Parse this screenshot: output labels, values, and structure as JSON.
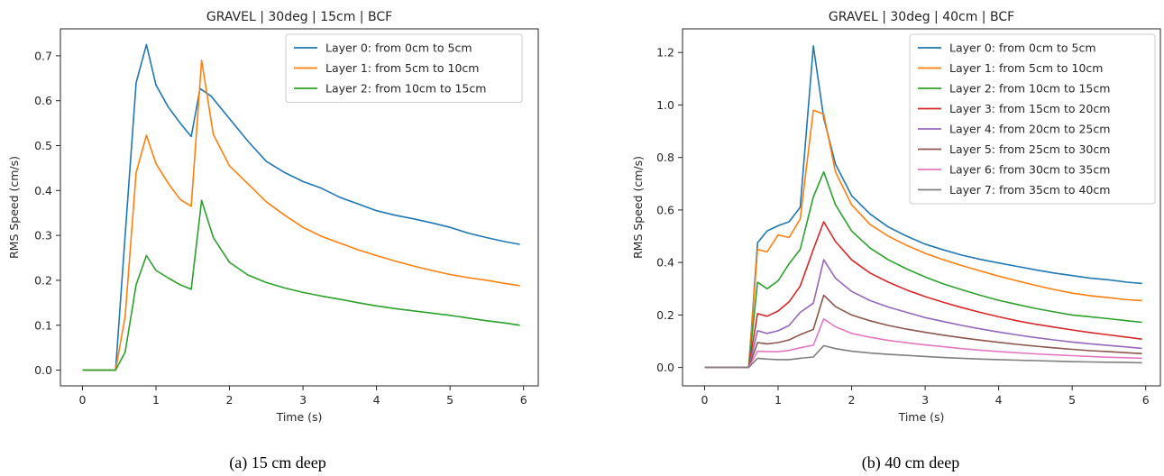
{
  "chart_data": [
    {
      "type": "line",
      "title": "GRAVEL | 30deg | 15cm | BCF",
      "xlabel": "Time (s)",
      "ylabel": "RMS Speed (cm/s)",
      "xlim": [
        -0.3,
        6.2
      ],
      "ylim": [
        -0.035,
        0.76
      ],
      "xticks": [
        0,
        1,
        2,
        3,
        4,
        5,
        6
      ],
      "yticks": [
        0.0,
        0.1,
        0.2,
        0.3,
        0.4,
        0.5,
        0.6,
        0.7
      ],
      "yticklabels": [
        "0.0",
        "0.1",
        "0.2",
        "0.3",
        "0.4",
        "0.5",
        "0.6",
        "0.7"
      ],
      "legend": "top-right",
      "caption": "(a) 15 cm deep",
      "series": [
        {
          "name": "Layer 0: from 0cm to 5cm",
          "color": "#1f77b4",
          "x": [
            0,
            0.45,
            0.58,
            0.73,
            0.87,
            1.0,
            1.17,
            1.33,
            1.48,
            1.6,
            1.75,
            2.0,
            2.25,
            2.5,
            2.75,
            3.0,
            3.25,
            3.5,
            3.75,
            4.0,
            4.25,
            4.5,
            4.75,
            5.0,
            5.25,
            5.5,
            5.75,
            5.95
          ],
          "y": [
            0.0,
            0.0,
            0.3,
            0.64,
            0.725,
            0.635,
            0.585,
            0.55,
            0.52,
            0.627,
            0.61,
            0.56,
            0.51,
            0.465,
            0.44,
            0.42,
            0.405,
            0.385,
            0.37,
            0.355,
            0.345,
            0.337,
            0.328,
            0.318,
            0.305,
            0.295,
            0.286,
            0.28
          ]
        },
        {
          "name": "Layer 1: from 5cm to 10cm",
          "color": "#ff7f0e",
          "x": [
            0,
            0.45,
            0.58,
            0.73,
            0.87,
            1.0,
            1.17,
            1.33,
            1.48,
            1.62,
            1.78,
            2.0,
            2.25,
            2.5,
            2.75,
            3.0,
            3.25,
            3.5,
            3.75,
            4.0,
            4.25,
            4.5,
            4.75,
            5.0,
            5.25,
            5.5,
            5.75,
            5.95
          ],
          "y": [
            0.0,
            0.0,
            0.12,
            0.44,
            0.523,
            0.46,
            0.415,
            0.38,
            0.365,
            0.69,
            0.525,
            0.455,
            0.415,
            0.375,
            0.345,
            0.318,
            0.298,
            0.283,
            0.268,
            0.255,
            0.243,
            0.232,
            0.222,
            0.213,
            0.206,
            0.2,
            0.193,
            0.188
          ]
        },
        {
          "name": "Layer 2: from 10cm to 15cm",
          "color": "#2ca02c",
          "x": [
            0,
            0.45,
            0.58,
            0.73,
            0.87,
            1.0,
            1.17,
            1.33,
            1.48,
            1.62,
            1.78,
            2.0,
            2.25,
            2.5,
            2.75,
            3.0,
            3.25,
            3.5,
            3.75,
            4.0,
            4.25,
            4.5,
            4.75,
            5.0,
            5.25,
            5.5,
            5.75,
            5.95
          ],
          "y": [
            0.0,
            0.0,
            0.04,
            0.19,
            0.255,
            0.222,
            0.205,
            0.19,
            0.18,
            0.378,
            0.295,
            0.24,
            0.212,
            0.195,
            0.183,
            0.173,
            0.165,
            0.158,
            0.15,
            0.143,
            0.137,
            0.132,
            0.127,
            0.122,
            0.116,
            0.11,
            0.105,
            0.1
          ]
        }
      ]
    },
    {
      "type": "line",
      "title": "GRAVEL | 30deg | 40cm | BCF",
      "xlabel": "Time (s)",
      "ylabel": "RMS Speed (cm/s)",
      "xlim": [
        -0.3,
        6.2
      ],
      "ylim": [
        -0.07,
        1.29
      ],
      "xticks": [
        0,
        1,
        2,
        3,
        4,
        5,
        6
      ],
      "yticks": [
        0.0,
        0.2,
        0.4,
        0.6,
        0.8,
        1.0,
        1.2
      ],
      "yticklabels": [
        "0.0",
        "0.2",
        "0.4",
        "0.6",
        "0.8",
        "1.0",
        "1.2"
      ],
      "legend": "top-right",
      "caption": "(b) 40 cm deep",
      "series": [
        {
          "name": "Layer 0: from 0cm to 5cm",
          "color": "#1f77b4",
          "x": [
            0,
            0.6,
            0.72,
            0.85,
            1.0,
            1.15,
            1.3,
            1.48,
            1.62,
            1.78,
            2.0,
            2.25,
            2.5,
            2.75,
            3.0,
            3.25,
            3.5,
            3.75,
            4.0,
            4.25,
            4.5,
            4.75,
            5.0,
            5.25,
            5.5,
            5.75,
            5.95
          ],
          "y": [
            0.0,
            0.0,
            0.475,
            0.52,
            0.54,
            0.555,
            0.61,
            1.225,
            0.95,
            0.775,
            0.655,
            0.585,
            0.535,
            0.5,
            0.47,
            0.448,
            0.428,
            0.412,
            0.398,
            0.385,
            0.372,
            0.36,
            0.35,
            0.34,
            0.334,
            0.325,
            0.32
          ]
        },
        {
          "name": "Layer 1: from 5cm to 10cm",
          "color": "#ff7f0e",
          "x": [
            0,
            0.6,
            0.72,
            0.85,
            1.0,
            1.15,
            1.3,
            1.48,
            1.62,
            1.78,
            2.0,
            2.25,
            2.5,
            2.75,
            3.0,
            3.25,
            3.5,
            3.75,
            4.0,
            4.25,
            4.5,
            4.75,
            5.0,
            5.25,
            5.5,
            5.75,
            5.95
          ],
          "y": [
            0.0,
            0.0,
            0.45,
            0.44,
            0.505,
            0.495,
            0.565,
            0.98,
            0.965,
            0.745,
            0.62,
            0.545,
            0.5,
            0.465,
            0.435,
            0.41,
            0.388,
            0.368,
            0.348,
            0.33,
            0.313,
            0.297,
            0.283,
            0.273,
            0.266,
            0.258,
            0.255
          ]
        },
        {
          "name": "Layer 2: from 10cm to 15cm",
          "color": "#2ca02c",
          "x": [
            0,
            0.6,
            0.72,
            0.85,
            1.0,
            1.15,
            1.3,
            1.48,
            1.62,
            1.78,
            2.0,
            2.25,
            2.5,
            2.75,
            3.0,
            3.25,
            3.5,
            3.75,
            4.0,
            4.25,
            4.5,
            4.75,
            5.0,
            5.25,
            5.5,
            5.75,
            5.95
          ],
          "y": [
            0.0,
            0.0,
            0.325,
            0.3,
            0.33,
            0.395,
            0.45,
            0.65,
            0.745,
            0.62,
            0.52,
            0.455,
            0.41,
            0.375,
            0.345,
            0.318,
            0.296,
            0.275,
            0.256,
            0.24,
            0.225,
            0.212,
            0.2,
            0.193,
            0.186,
            0.178,
            0.172
          ]
        },
        {
          "name": "Layer 3: from 15cm to 20cm",
          "color": "#d62728",
          "x": [
            0,
            0.6,
            0.72,
            0.85,
            1.0,
            1.15,
            1.3,
            1.48,
            1.62,
            1.78,
            2.0,
            2.25,
            2.5,
            2.75,
            3.0,
            3.25,
            3.5,
            3.75,
            4.0,
            4.25,
            4.5,
            4.75,
            5.0,
            5.25,
            5.5,
            5.75,
            5.95
          ],
          "y": [
            0.0,
            0.0,
            0.205,
            0.195,
            0.215,
            0.25,
            0.31,
            0.45,
            0.555,
            0.48,
            0.41,
            0.36,
            0.325,
            0.295,
            0.27,
            0.248,
            0.228,
            0.21,
            0.193,
            0.178,
            0.165,
            0.154,
            0.143,
            0.133,
            0.124,
            0.115,
            0.108
          ]
        },
        {
          "name": "Layer 4: from 20cm to 25cm",
          "color": "#9467bd",
          "x": [
            0,
            0.6,
            0.72,
            0.85,
            1.0,
            1.15,
            1.3,
            1.48,
            1.62,
            1.78,
            2.0,
            2.25,
            2.5,
            2.75,
            3.0,
            3.25,
            3.5,
            3.75,
            4.0,
            4.25,
            4.5,
            4.75,
            5.0,
            5.25,
            5.5,
            5.75,
            5.95
          ],
          "y": [
            0.0,
            0.0,
            0.14,
            0.13,
            0.14,
            0.16,
            0.21,
            0.245,
            0.41,
            0.34,
            0.29,
            0.255,
            0.23,
            0.21,
            0.19,
            0.175,
            0.16,
            0.147,
            0.135,
            0.124,
            0.114,
            0.105,
            0.097,
            0.09,
            0.084,
            0.078,
            0.073
          ]
        },
        {
          "name": "Layer 5: from 25cm to 30cm",
          "color": "#8c564b",
          "x": [
            0,
            0.6,
            0.72,
            0.85,
            1.0,
            1.15,
            1.3,
            1.48,
            1.62,
            1.78,
            2.0,
            2.25,
            2.5,
            2.75,
            3.0,
            3.25,
            3.5,
            3.75,
            4.0,
            4.25,
            4.5,
            4.75,
            5.0,
            5.25,
            5.5,
            5.75,
            5.95
          ],
          "y": [
            0.0,
            0.0,
            0.095,
            0.09,
            0.095,
            0.105,
            0.125,
            0.145,
            0.275,
            0.232,
            0.2,
            0.178,
            0.16,
            0.146,
            0.134,
            0.123,
            0.113,
            0.104,
            0.096,
            0.088,
            0.081,
            0.075,
            0.069,
            0.064,
            0.06,
            0.056,
            0.053
          ]
        },
        {
          "name": "Layer 6: from 30cm to 35cm",
          "color": "#e377c2",
          "x": [
            0,
            0.6,
            0.72,
            0.85,
            1.0,
            1.15,
            1.3,
            1.48,
            1.62,
            1.78,
            2.0,
            2.25,
            2.5,
            2.75,
            3.0,
            3.25,
            3.5,
            3.75,
            4.0,
            4.25,
            4.5,
            4.75,
            5.0,
            5.25,
            5.5,
            5.75,
            5.95
          ],
          "y": [
            0.0,
            0.0,
            0.062,
            0.06,
            0.06,
            0.065,
            0.075,
            0.085,
            0.185,
            0.155,
            0.13,
            0.115,
            0.103,
            0.094,
            0.086,
            0.079,
            0.072,
            0.066,
            0.061,
            0.056,
            0.052,
            0.048,
            0.045,
            0.042,
            0.039,
            0.037,
            0.035
          ]
        },
        {
          "name": "Layer 7: from 35cm to 40cm",
          "color": "#7f7f7f",
          "x": [
            0,
            0.6,
            0.72,
            0.85,
            1.0,
            1.15,
            1.3,
            1.48,
            1.62,
            1.78,
            2.0,
            2.25,
            2.5,
            2.75,
            3.0,
            3.25,
            3.5,
            3.75,
            4.0,
            4.25,
            4.5,
            4.75,
            5.0,
            5.25,
            5.5,
            5.75,
            5.95
          ],
          "y": [
            0.0,
            0.0,
            0.035,
            0.032,
            0.03,
            0.03,
            0.035,
            0.04,
            0.083,
            0.072,
            0.062,
            0.055,
            0.05,
            0.046,
            0.042,
            0.038,
            0.035,
            0.032,
            0.03,
            0.028,
            0.026,
            0.024,
            0.022,
            0.021,
            0.02,
            0.019,
            0.018
          ]
        }
      ]
    }
  ]
}
